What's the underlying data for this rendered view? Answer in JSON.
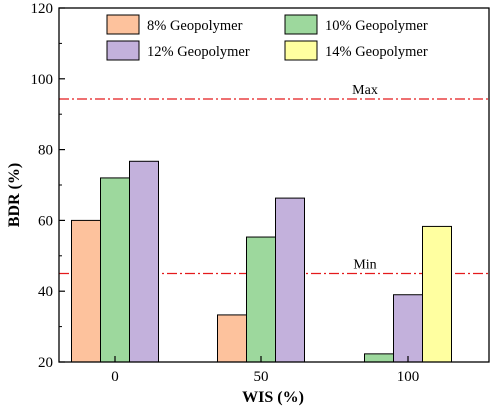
{
  "chart_data": {
    "type": "bar",
    "xlabel": "WIS (%)",
    "ylabel": "BDR (%)",
    "ylim": [
      20,
      120
    ],
    "yticks": [
      "20",
      "40",
      "60",
      "80",
      "100",
      "120"
    ],
    "categories": [
      "0",
      "50",
      "100"
    ],
    "legend_placement": "top",
    "series": [
      {
        "name": "8% Geopolymer",
        "color": "#fdc29d",
        "values": [
          60.0,
          33.3,
          null
        ]
      },
      {
        "name": "10% Geopolymer",
        "color": "#9dd89d",
        "values": [
          72.0,
          55.3,
          22.3
        ]
      },
      {
        "name": "12% Geopolymer",
        "color": "#c3b1dc",
        "values": [
          76.7,
          66.3,
          39.0
        ]
      },
      {
        "name": "14% Geopolymer",
        "color": "#ffffa0",
        "values": [
          null,
          null,
          58.3
        ]
      }
    ],
    "reference_lines": [
      {
        "label": "Max",
        "value": 94.3,
        "color": "#e41a1c",
        "style": "dash-dot"
      },
      {
        "label": "Min",
        "value": 45.0,
        "color": "#e41a1c",
        "style": "dash-dot"
      }
    ],
    "grid": false
  }
}
